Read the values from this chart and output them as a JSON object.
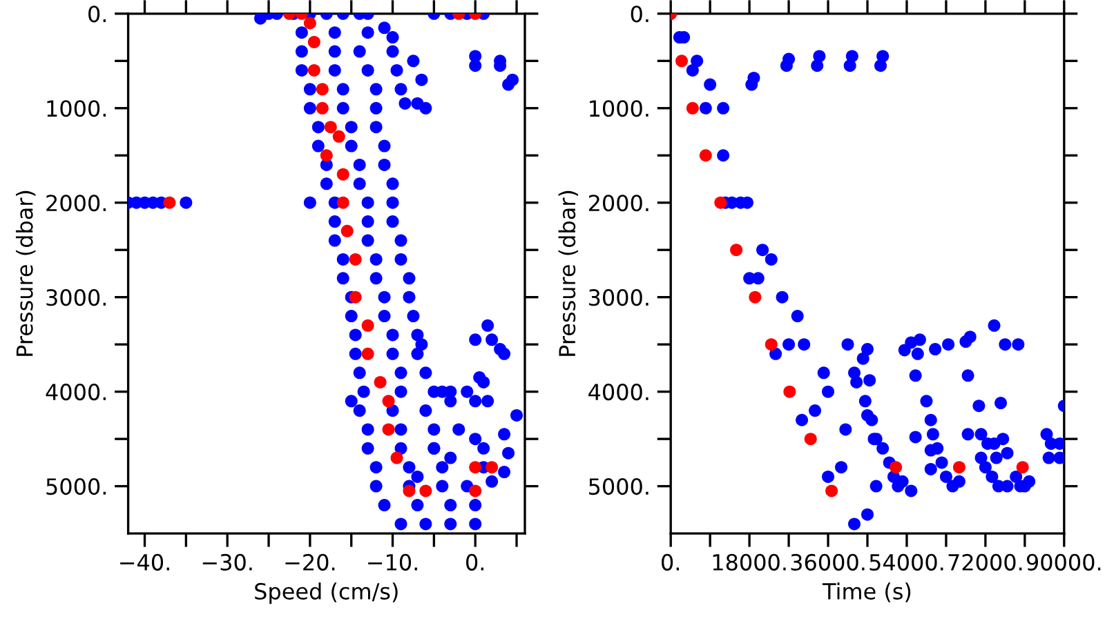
{
  "chart_data": [
    {
      "type": "scatter",
      "xlabel": "Speed (cm/s)",
      "ylabel": "Pressure (dbar)",
      "xlim": [
        -42,
        6
      ],
      "ylim": [
        5500,
        0
      ],
      "marker": "circle",
      "grid": false,
      "legend": false,
      "xticks": [
        {
          "value": -40,
          "label": "−40."
        },
        {
          "value": -35,
          "label": null
        },
        {
          "value": -30,
          "label": "−30."
        },
        {
          "value": -25,
          "label": null
        },
        {
          "value": -20,
          "label": "−20."
        },
        {
          "value": -15,
          "label": null
        },
        {
          "value": -10,
          "label": "−10."
        },
        {
          "value": -5,
          "label": null
        },
        {
          "value": 0,
          "label": "0."
        },
        {
          "value": 5,
          "label": null
        }
      ],
      "yticks": [
        {
          "value": 0,
          "label": "0."
        },
        {
          "value": 500,
          "label": null
        },
        {
          "value": 1000,
          "label": "1000."
        },
        {
          "value": 1500,
          "label": null
        },
        {
          "value": 2000,
          "label": "2000."
        },
        {
          "value": 2500,
          "label": null
        },
        {
          "value": 3000,
          "label": "3000."
        },
        {
          "value": 3500,
          "label": null
        },
        {
          "value": 4000,
          "label": "4000."
        },
        {
          "value": 4500,
          "label": null
        },
        {
          "value": 5000,
          "label": "5000."
        }
      ],
      "series": [
        {
          "color": "#0000ff",
          "x": [
            -26,
            -25,
            -24,
            -22,
            -20,
            -18,
            -16,
            -14,
            -13,
            -5,
            -3,
            -1,
            1,
            -21,
            -17,
            -13,
            -21,
            -17,
            -14,
            -21,
            -17,
            -13,
            -20,
            -16,
            -12,
            -20,
            -16,
            -12,
            -19,
            -15,
            -12,
            -19,
            -15,
            -11,
            -18,
            -14,
            -11,
            -18,
            -14,
            -10,
            -20,
            -17,
            -13,
            -10,
            -17,
            -13,
            -10,
            -17,
            -13,
            -9,
            -16,
            -12,
            -9,
            -16,
            -12,
            -8,
            -15,
            -11,
            -8,
            -15,
            -11,
            -7.5,
            -14.5,
            -10,
            -7,
            -6.5,
            -14.5,
            -10,
            -7,
            -14,
            -9,
            -6,
            -13.5,
            -9,
            -5,
            -4,
            -15,
            -3,
            -14,
            -10,
            -6,
            -13,
            -9,
            -5,
            -13,
            -9,
            -5,
            -12,
            -8,
            -4,
            -12,
            -8,
            -4,
            -1,
            -11,
            -7,
            -3,
            0,
            -9,
            -6,
            -3,
            0,
            -11,
            -10,
            -10,
            -9.5,
            -9,
            -8.5,
            -7,
            -6,
            -7.5,
            -6.5,
            0,
            0,
            3,
            3,
            4.5,
            4,
            -42,
            -41,
            -40,
            -39,
            -38,
            -35,
            0,
            1.5,
            2,
            3,
            3.5,
            0.5,
            1,
            -1,
            -3,
            0,
            1.5,
            5,
            -2,
            0,
            1,
            3.5,
            4,
            -3,
            1,
            3.5,
            2,
            -5,
            -7
          ],
          "values": [
            50,
            0,
            0,
            0,
            0,
            0,
            0,
            0,
            0,
            0,
            0,
            0,
            0,
            200,
            200,
            200,
            400,
            400,
            400,
            600,
            600,
            600,
            800,
            800,
            800,
            1000,
            1000,
            1000,
            1200,
            1200,
            1200,
            1400,
            1400,
            1400,
            1600,
            1600,
            1600,
            1800,
            1800,
            1800,
            2000,
            2000,
            2000,
            2000,
            2200,
            2200,
            2200,
            2400,
            2400,
            2400,
            2600,
            2600,
            2600,
            2800,
            2800,
            2800,
            3000,
            3000,
            3000,
            3200,
            3200,
            3200,
            3400,
            3400,
            3400,
            3500,
            3600,
            3600,
            3600,
            3800,
            3800,
            3800,
            4000,
            4000,
            4000,
            4000,
            4100,
            4100,
            4200,
            4200,
            4200,
            4400,
            4400,
            4400,
            4600,
            4600,
            4600,
            4800,
            4800,
            4800,
            5000,
            5000,
            5000,
            5000,
            5200,
            5200,
            5200,
            5200,
            5400,
            5400,
            5400,
            5400,
            150,
            250,
            400,
            600,
            800,
            950,
            950,
            1000,
            500,
            700,
            450,
            550,
            500,
            550,
            700,
            750,
            2000,
            2000,
            2000,
            2000,
            2000,
            2000,
            3450,
            3300,
            3450,
            3550,
            3600,
            3850,
            3900,
            4000,
            4000,
            4100,
            4100,
            4250,
            4400,
            4500,
            4600,
            4450,
            4650,
            4700,
            4800,
            4850,
            4950,
            4600,
            4900
          ]
        },
        {
          "color": "#ff0000",
          "x": [
            -22.5,
            -21,
            -2,
            0,
            -20,
            -19.5,
            -19.5,
            -18.5,
            -18.5,
            -17.5,
            -16.5,
            -18,
            -16,
            -16,
            -15.5,
            -14.5,
            -14.5,
            -13,
            -13,
            -11.5,
            -10.5,
            -10.5,
            -9.5,
            -8,
            -6,
            0,
            2,
            0,
            -37
          ],
          "values": [
            0,
            0,
            0,
            0,
            100,
            300,
            600,
            800,
            1000,
            1200,
            1300,
            1500,
            1700,
            2000,
            2300,
            2600,
            3000,
            3300,
            3600,
            3900,
            4100,
            4400,
            4700,
            5050,
            5050,
            4800,
            4800,
            5050,
            2000
          ]
        }
      ]
    },
    {
      "type": "scatter",
      "xlabel": "Time (s)",
      "ylabel": "Pressure (dbar)",
      "xlim": [
        0,
        90000
      ],
      "ylim": [
        5500,
        0
      ],
      "marker": "circle",
      "grid": false,
      "legend": false,
      "xticks": [
        {
          "value": 0,
          "label": "0."
        },
        {
          "value": 9000,
          "label": null
        },
        {
          "value": 18000,
          "label": "18000."
        },
        {
          "value": 27000,
          "label": null
        },
        {
          "value": 36000,
          "label": "36000."
        },
        {
          "value": 45000,
          "label": null
        },
        {
          "value": 54000,
          "label": "54000."
        },
        {
          "value": 63000,
          "label": null
        },
        {
          "value": 72000,
          "label": "72000."
        },
        {
          "value": 81000,
          "label": null
        },
        {
          "value": 90000,
          "label": "90000."
        }
      ],
      "yticks": [
        {
          "value": 0,
          "label": "0."
        },
        {
          "value": 500,
          "label": null
        },
        {
          "value": 1000,
          "label": "1000."
        },
        {
          "value": 1500,
          "label": null
        },
        {
          "value": 2000,
          "label": "2000."
        },
        {
          "value": 2500,
          "label": null
        },
        {
          "value": 3000,
          "label": "3000."
        },
        {
          "value": 3500,
          "label": null
        },
        {
          "value": 4000,
          "label": "4000."
        },
        {
          "value": 4500,
          "label": null
        },
        {
          "value": 5000,
          "label": "5000."
        }
      ],
      "series": [
        {
          "color": "#0000ff",
          "x": [
            0,
            3000,
            6000,
            9000,
            12000,
            2000,
            5000,
            8000,
            12000,
            16000,
            21000,
            25500,
            30500,
            36000,
            17500,
            23000,
            29000,
            35000,
            40000,
            47000,
            14000,
            20000,
            27000,
            33000,
            39000,
            45000,
            12500,
            18000,
            24000,
            30000,
            36000,
            42000,
            18500,
            19000,
            26500,
            27000,
            33500,
            34000,
            41000,
            41500,
            48000,
            48500,
            40500,
            42000,
            42500,
            44000,
            45000,
            45500,
            46000,
            44500,
            45000,
            46500,
            47000,
            48500,
            50000,
            51000,
            52000,
            53000,
            55000,
            56500,
            53500,
            55000,
            57000,
            56000,
            56000,
            58500,
            59500,
            60000,
            61000,
            62000,
            63000,
            64500,
            66000,
            60500,
            63500,
            59500,
            59500,
            67500,
            68500,
            68000,
            68000,
            70500,
            71000,
            71000,
            72000,
            73500,
            75000,
            77000,
            74000,
            76500,
            72500,
            74000,
            76000,
            77000,
            79000,
            80000,
            81000,
            82000,
            75500,
            74500,
            79500,
            89000,
            90000,
            86000,
            86500,
            89000,
            87000
          ],
          "values": [
            0,
            250,
            500,
            750,
            1000,
            250,
            600,
            1000,
            1500,
            2000,
            2500,
            3000,
            3500,
            4000,
            2000,
            2600,
            3200,
            3800,
            4400,
            5000,
            2000,
            2800,
            3500,
            4200,
            4800,
            5300,
            2000,
            2800,
            3600,
            4300,
            4900,
            5400,
            750,
            680,
            550,
            480,
            550,
            450,
            550,
            450,
            550,
            450,
            3500,
            3800,
            3900,
            3650,
            3550,
            3880,
            4300,
            4100,
            4250,
            4500,
            4500,
            4600,
            4750,
            4900,
            5000,
            4950,
            5050,
            3600,
            3560,
            3480,
            3450,
            3830,
            4480,
            4100,
            4300,
            4450,
            4600,
            4750,
            4900,
            5000,
            4950,
            3550,
            3500,
            4620,
            4820,
            3470,
            3420,
            3830,
            4450,
            4150,
            4450,
            4700,
            4800,
            4900,
            5000,
            5000,
            3300,
            3500,
            4550,
            4550,
            4500,
            4650,
            4900,
            5000,
            5000,
            4950,
            4120,
            4700,
            3500,
            4550,
            4150,
            4450,
            4700,
            4700,
            4550
          ]
        },
        {
          "color": "#ff0000",
          "x": [
            0,
            2500,
            5000,
            8000,
            11400,
            15000,
            19300,
            23000,
            27200,
            32000,
            36800,
            51500,
            66000,
            80500
          ],
          "values": [
            0,
            500,
            1000,
            1500,
            2000,
            2500,
            3000,
            3500,
            4000,
            4500,
            5050,
            4800,
            4800,
            4800
          ]
        }
      ]
    }
  ]
}
